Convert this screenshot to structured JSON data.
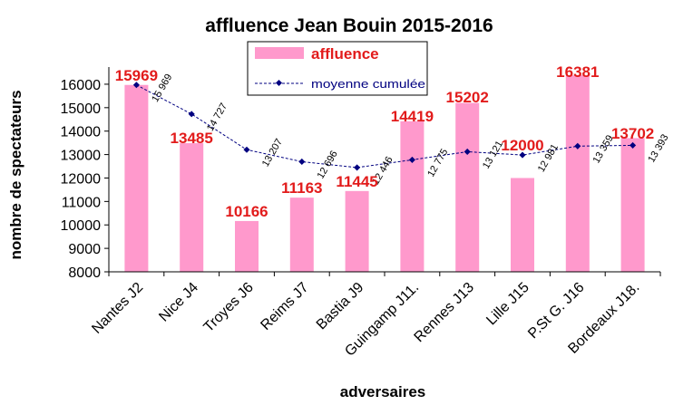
{
  "chart_data": {
    "type": "bar",
    "title": "affluence Jean Bouin 2015-2016",
    "xlabel": "adversaires",
    "ylabel": "nombre de spectateurs",
    "ylim": [
      8000,
      16500
    ],
    "yticks": [
      "8000",
      "9000",
      "10000",
      "11000",
      "12000",
      "13000",
      "14000",
      "15000",
      "16000"
    ],
    "categories": [
      "Nantes J2",
      "Nice J4",
      "Troyes J6",
      "Reims J7",
      "Bastia J9",
      "Guingamp J11.",
      "Rennes J13",
      "Lille J15",
      "P.St G. J16",
      "Bordeaux J18."
    ],
    "series": [
      {
        "name": "affluence",
        "type": "bar",
        "color": "#ff99cc",
        "values": [
          15969,
          13485,
          10166,
          11163,
          11445,
          14419,
          15202,
          12000,
          16381,
          13702
        ],
        "labels": [
          "15969",
          "13485",
          "10166",
          "11163",
          "11445",
          "14419",
          "15202",
          "12000",
          "16381",
          "13702"
        ]
      },
      {
        "name": "moyenne cumulée",
        "type": "line",
        "color": "#000080",
        "values": [
          15969,
          14727,
          13207,
          12696,
          12446,
          12775,
          13121,
          12981,
          13359,
          13393
        ],
        "labels": [
          "15 969",
          "14 727",
          "13 207",
          "12 696",
          "12 446",
          "12 775",
          "13 121",
          "12 981",
          "13 359",
          "13 393"
        ]
      }
    ],
    "legend": {
      "position": "top-center",
      "bar_label": "affluence",
      "line_label": "moyenne cumulée"
    },
    "grid": false
  }
}
